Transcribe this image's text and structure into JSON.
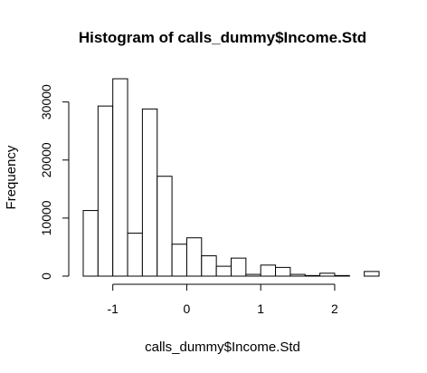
{
  "chart_data": {
    "type": "bar",
    "title": "Histogram of calls_dummy$Income.Std",
    "xlabel": "calls_dummy$Income.Std",
    "ylabel": "Frequency",
    "bin_width": 0.2,
    "bin_starts": [
      -1.4,
      -1.2,
      -1.0,
      -0.8,
      -0.6,
      -0.4,
      -0.2,
      0.0,
      0.2,
      0.4,
      0.6,
      0.8,
      1.0,
      1.2,
      1.4,
      1.6,
      1.8,
      2.0,
      2.2,
      2.4
    ],
    "values": [
      11300,
      29300,
      34000,
      7400,
      28800,
      17200,
      5500,
      6600,
      3500,
      1700,
      3100,
      300,
      1900,
      1500,
      300,
      100,
      500,
      100,
      0,
      800
    ],
    "xlim": [
      -1.4,
      2.6
    ],
    "ylim": [
      0,
      34000
    ],
    "x_ticks": [
      -1,
      0,
      1,
      2
    ],
    "x_tick_labels": [
      "-1",
      "0",
      "1",
      "2"
    ],
    "y_ticks": [
      0,
      10000,
      20000,
      30000
    ],
    "y_tick_labels": [
      "0",
      "10000",
      "20000",
      "30000"
    ],
    "grid": false,
    "legend": "none"
  }
}
